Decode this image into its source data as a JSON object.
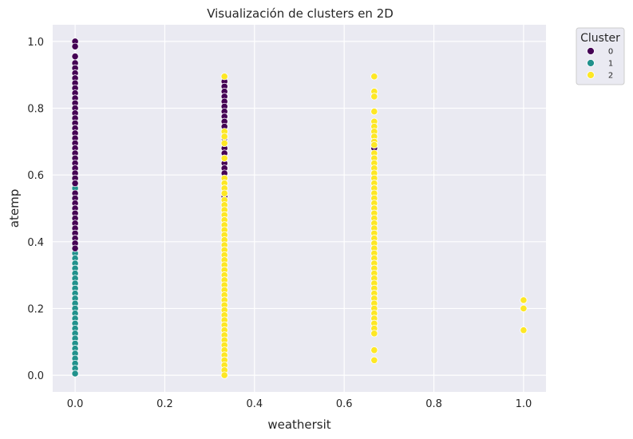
{
  "chart_data": {
    "type": "scatter",
    "title": "Visualización de clusters en 2D",
    "xlabel": "weathersit",
    "ylabel": "atemp",
    "xlim": [
      -0.05,
      1.05
    ],
    "ylim": [
      -0.05,
      1.05
    ],
    "xticks": [
      "0.0",
      "0.2",
      "0.4",
      "0.6",
      "0.8",
      "1.0"
    ],
    "yticks": [
      "0.0",
      "0.2",
      "0.4",
      "0.6",
      "0.8",
      "1.0"
    ],
    "grid": true,
    "background": "#eaeaf2",
    "legend": {
      "title": "Cluster",
      "placement": "outside-top-right",
      "entries": [
        {
          "label": "0",
          "color": "#440154"
        },
        {
          "label": "1",
          "color": "#21918c"
        },
        {
          "label": "2",
          "color": "#fde725"
        }
      ]
    },
    "series": [
      {
        "name": "0",
        "color": "#440154",
        "points": [
          [
            0.0,
            1.0
          ],
          [
            0.0,
            0.985
          ],
          [
            0.0,
            0.955
          ],
          [
            0.0,
            0.935
          ],
          [
            0.0,
            0.92
          ],
          [
            0.0,
            0.905
          ],
          [
            0.0,
            0.89
          ],
          [
            0.0,
            0.875
          ],
          [
            0.0,
            0.86
          ],
          [
            0.0,
            0.845
          ],
          [
            0.0,
            0.83
          ],
          [
            0.0,
            0.815
          ],
          [
            0.0,
            0.8
          ],
          [
            0.0,
            0.785
          ],
          [
            0.0,
            0.77
          ],
          [
            0.0,
            0.755
          ],
          [
            0.0,
            0.74
          ],
          [
            0.0,
            0.725
          ],
          [
            0.0,
            0.71
          ],
          [
            0.0,
            0.695
          ],
          [
            0.0,
            0.68
          ],
          [
            0.0,
            0.665
          ],
          [
            0.0,
            0.65
          ],
          [
            0.0,
            0.635
          ],
          [
            0.0,
            0.62
          ],
          [
            0.0,
            0.605
          ],
          [
            0.0,
            0.59
          ],
          [
            0.0,
            0.575
          ],
          [
            0.0,
            0.545
          ],
          [
            0.0,
            0.53
          ],
          [
            0.0,
            0.515
          ],
          [
            0.0,
            0.5
          ],
          [
            0.0,
            0.485
          ],
          [
            0.0,
            0.47
          ],
          [
            0.0,
            0.455
          ],
          [
            0.0,
            0.44
          ],
          [
            0.0,
            0.425
          ],
          [
            0.0,
            0.41
          ],
          [
            0.0,
            0.395
          ],
          [
            0.0,
            0.38
          ],
          [
            0.333,
            0.88
          ],
          [
            0.333,
            0.865
          ],
          [
            0.333,
            0.85
          ],
          [
            0.333,
            0.835
          ],
          [
            0.333,
            0.82
          ],
          [
            0.333,
            0.805
          ],
          [
            0.333,
            0.79
          ],
          [
            0.333,
            0.775
          ],
          [
            0.333,
            0.76
          ],
          [
            0.333,
            0.745
          ],
          [
            0.333,
            0.71
          ],
          [
            0.333,
            0.68
          ],
          [
            0.333,
            0.665
          ],
          [
            0.333,
            0.635
          ],
          [
            0.333,
            0.62
          ],
          [
            0.333,
            0.605
          ],
          [
            0.333,
            0.535
          ],
          [
            0.667,
            0.68
          ]
        ]
      },
      {
        "name": "1",
        "color": "#21918c",
        "points": [
          [
            0.0,
            0.57
          ],
          [
            0.0,
            0.56
          ],
          [
            0.0,
            0.465
          ],
          [
            0.0,
            0.405
          ],
          [
            0.0,
            0.39
          ],
          [
            0.0,
            0.365
          ],
          [
            0.0,
            0.35
          ],
          [
            0.0,
            0.335
          ],
          [
            0.0,
            0.32
          ],
          [
            0.0,
            0.305
          ],
          [
            0.0,
            0.29
          ],
          [
            0.0,
            0.275
          ],
          [
            0.0,
            0.26
          ],
          [
            0.0,
            0.245
          ],
          [
            0.0,
            0.23
          ],
          [
            0.0,
            0.215
          ],
          [
            0.0,
            0.2
          ],
          [
            0.0,
            0.185
          ],
          [
            0.0,
            0.17
          ],
          [
            0.0,
            0.155
          ],
          [
            0.0,
            0.14
          ],
          [
            0.0,
            0.125
          ],
          [
            0.0,
            0.11
          ],
          [
            0.0,
            0.095
          ],
          [
            0.0,
            0.08
          ],
          [
            0.0,
            0.065
          ],
          [
            0.0,
            0.05
          ],
          [
            0.0,
            0.035
          ],
          [
            0.0,
            0.02
          ],
          [
            0.0,
            0.005
          ]
        ]
      },
      {
        "name": "2",
        "color": "#fde725",
        "points": [
          [
            0.333,
            0.895
          ],
          [
            0.333,
            0.73
          ],
          [
            0.333,
            0.715
          ],
          [
            0.333,
            0.695
          ],
          [
            0.333,
            0.65
          ],
          [
            0.333,
            0.59
          ],
          [
            0.333,
            0.575
          ],
          [
            0.333,
            0.56
          ],
          [
            0.333,
            0.545
          ],
          [
            0.333,
            0.525
          ],
          [
            0.333,
            0.51
          ],
          [
            0.333,
            0.495
          ],
          [
            0.333,
            0.48
          ],
          [
            0.333,
            0.465
          ],
          [
            0.333,
            0.45
          ],
          [
            0.333,
            0.435
          ],
          [
            0.333,
            0.42
          ],
          [
            0.333,
            0.405
          ],
          [
            0.333,
            0.39
          ],
          [
            0.333,
            0.375
          ],
          [
            0.333,
            0.36
          ],
          [
            0.333,
            0.345
          ],
          [
            0.333,
            0.33
          ],
          [
            0.333,
            0.315
          ],
          [
            0.333,
            0.3
          ],
          [
            0.333,
            0.285
          ],
          [
            0.333,
            0.27
          ],
          [
            0.333,
            0.255
          ],
          [
            0.333,
            0.24
          ],
          [
            0.333,
            0.225
          ],
          [
            0.333,
            0.21
          ],
          [
            0.333,
            0.195
          ],
          [
            0.333,
            0.18
          ],
          [
            0.333,
            0.165
          ],
          [
            0.333,
            0.15
          ],
          [
            0.333,
            0.135
          ],
          [
            0.333,
            0.12
          ],
          [
            0.333,
            0.105
          ],
          [
            0.333,
            0.09
          ],
          [
            0.333,
            0.075
          ],
          [
            0.333,
            0.06
          ],
          [
            0.333,
            0.045
          ],
          [
            0.333,
            0.03
          ],
          [
            0.333,
            0.015
          ],
          [
            0.333,
            0.0
          ],
          [
            0.667,
            0.895
          ],
          [
            0.667,
            0.85
          ],
          [
            0.667,
            0.835
          ],
          [
            0.667,
            0.79
          ],
          [
            0.667,
            0.76
          ],
          [
            0.667,
            0.745
          ],
          [
            0.667,
            0.73
          ],
          [
            0.667,
            0.715
          ],
          [
            0.667,
            0.7
          ],
          [
            0.667,
            0.69
          ],
          [
            0.667,
            0.665
          ],
          [
            0.667,
            0.65
          ],
          [
            0.667,
            0.635
          ],
          [
            0.667,
            0.62
          ],
          [
            0.667,
            0.605
          ],
          [
            0.667,
            0.59
          ],
          [
            0.667,
            0.575
          ],
          [
            0.667,
            0.56
          ],
          [
            0.667,
            0.545
          ],
          [
            0.667,
            0.53
          ],
          [
            0.667,
            0.515
          ],
          [
            0.667,
            0.5
          ],
          [
            0.667,
            0.485
          ],
          [
            0.667,
            0.47
          ],
          [
            0.667,
            0.455
          ],
          [
            0.667,
            0.44
          ],
          [
            0.667,
            0.425
          ],
          [
            0.667,
            0.41
          ],
          [
            0.667,
            0.395
          ],
          [
            0.667,
            0.38
          ],
          [
            0.667,
            0.365
          ],
          [
            0.667,
            0.35
          ],
          [
            0.667,
            0.335
          ],
          [
            0.667,
            0.32
          ],
          [
            0.667,
            0.305
          ],
          [
            0.667,
            0.29
          ],
          [
            0.667,
            0.275
          ],
          [
            0.667,
            0.26
          ],
          [
            0.667,
            0.245
          ],
          [
            0.667,
            0.23
          ],
          [
            0.667,
            0.215
          ],
          [
            0.667,
            0.2
          ],
          [
            0.667,
            0.185
          ],
          [
            0.667,
            0.17
          ],
          [
            0.667,
            0.155
          ],
          [
            0.667,
            0.14
          ],
          [
            0.667,
            0.125
          ],
          [
            0.667,
            0.075
          ],
          [
            0.667,
            0.045
          ],
          [
            1.0,
            0.225
          ],
          [
            1.0,
            0.2
          ],
          [
            1.0,
            0.135
          ]
        ]
      }
    ]
  }
}
